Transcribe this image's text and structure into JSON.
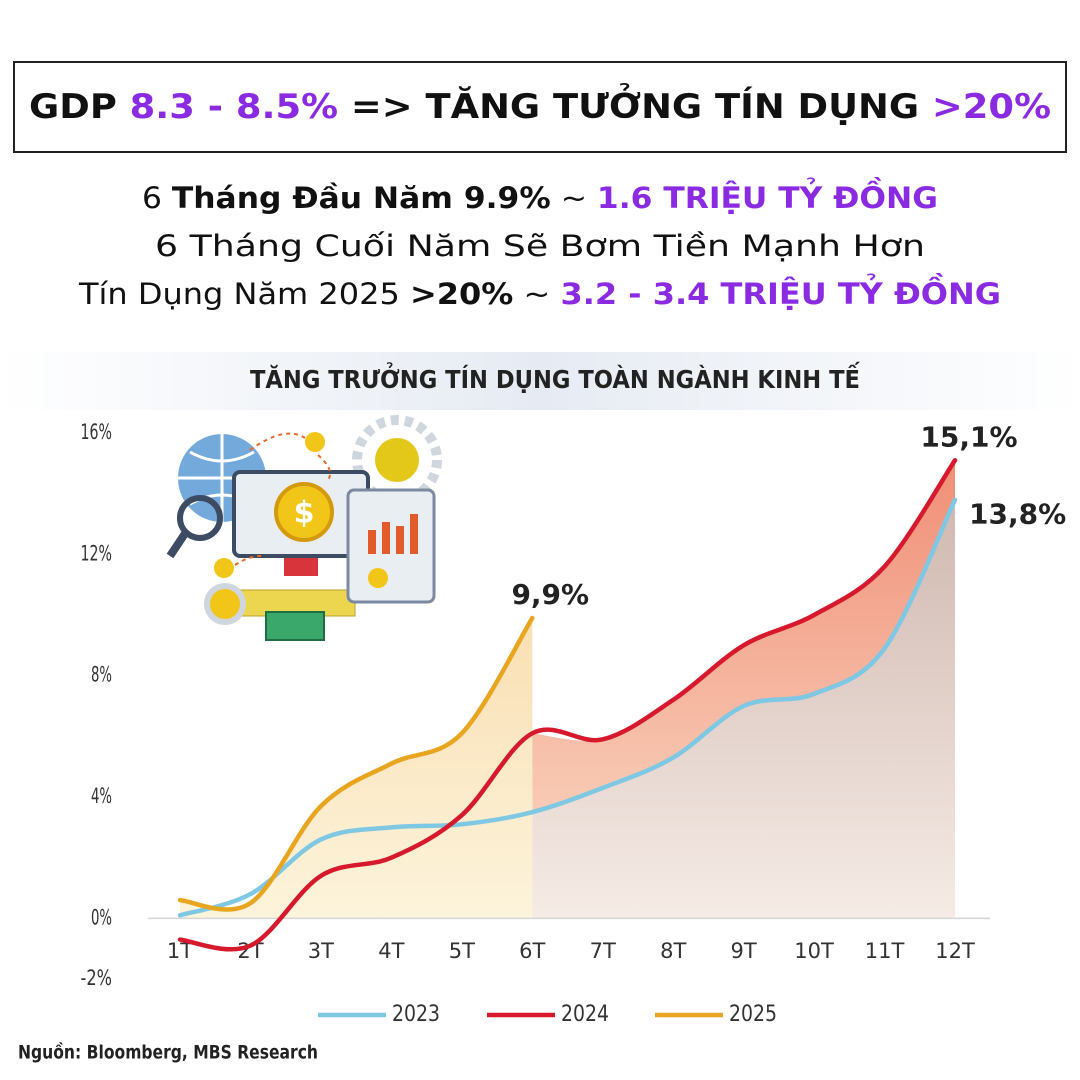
{
  "headline": [
    {
      "text": "GDP ",
      "color": "#111111"
    },
    {
      "text": "8.3 - 8.5%",
      "color": "#8a2be2"
    },
    {
      "text": " => TĂNG TƯỞNG TÍN DỤNG ",
      "color": "#111111"
    },
    {
      "text": ">20%",
      "color": "#8a2be2"
    }
  ],
  "lines": [
    [
      {
        "text": "6 ",
        "weight": "normal",
        "color": "#111111"
      },
      {
        "text": "Tháng Đầu Năm 9.9%",
        "weight": "bold",
        "color": "#111111"
      },
      {
        "text": " ~ ",
        "weight": "normal",
        "color": "#111111"
      },
      {
        "text": "1.6 TRIỆU TỶ ĐỒNG",
        "weight": "bold",
        "color": "#8a2be2"
      }
    ],
    [
      {
        "text": "6 Tháng Cuối Năm Sẽ Bơm Tiền Mạnh Hơn",
        "weight": "normal",
        "color": "#111111"
      }
    ],
    [
      {
        "text": "Tín Dụng Năm 2025 ",
        "weight": "normal",
        "color": "#111111"
      },
      {
        "text": ">20%",
        "weight": "bold",
        "color": "#111111"
      },
      {
        "text": " ~ ",
        "weight": "normal",
        "color": "#111111"
      },
      {
        "text": "3.2 - 3.4 TRIỆU TỶ ĐỒNG",
        "weight": "bold",
        "color": "#8a2be2"
      }
    ]
  ],
  "chart_data": {
    "type": "line",
    "title": "TĂNG TRƯỞNG TÍN DỤNG TOÀN NGÀNH KINH TẾ",
    "source": "Nguồn: Bloomberg, MBS Research",
    "categories": [
      "1T",
      "2T",
      "3T",
      "4T",
      "5T",
      "6T",
      "7T",
      "8T",
      "9T",
      "10T",
      "11T",
      "12T"
    ],
    "series": [
      {
        "name": "2023",
        "color": "#7ec8e3",
        "values": [
          0.1,
          0.8,
          2.6,
          3.0,
          3.1,
          3.5,
          4.3,
          5.3,
          7.0,
          7.4,
          8.9,
          13.8
        ],
        "value_labels": [
          null,
          null,
          null,
          null,
          null,
          null,
          null,
          null,
          null,
          null,
          null,
          "13,8%"
        ]
      },
      {
        "name": "2024",
        "color": "#d7192d",
        "values": [
          -0.7,
          -0.9,
          1.4,
          2.0,
          3.4,
          6.1,
          5.9,
          7.2,
          9.0,
          10.0,
          11.6,
          15.1
        ],
        "value_labels": [
          null,
          null,
          null,
          null,
          null,
          null,
          null,
          null,
          null,
          null,
          null,
          "15,1%"
        ]
      },
      {
        "name": "2025",
        "color": "#e8a520",
        "values": [
          0.6,
          0.5,
          3.7,
          5.1,
          6.1,
          9.9,
          null,
          null,
          null,
          null,
          null,
          null
        ],
        "value_labels": [
          null,
          null,
          null,
          null,
          null,
          "9,9%",
          null,
          null,
          null,
          null,
          null,
          null
        ]
      }
    ],
    "ylim": [
      -2,
      16
    ],
    "yticks": [
      {
        "value": 16,
        "label": "16%"
      },
      {
        "value": 12,
        "label": "12%"
      },
      {
        "value": 8,
        "label": "8%"
      },
      {
        "value": 4,
        "label": "4%"
      },
      {
        "value": 0,
        "label": "0%"
      },
      {
        "value": -2,
        "label": "-2%"
      }
    ],
    "grid": false
  }
}
